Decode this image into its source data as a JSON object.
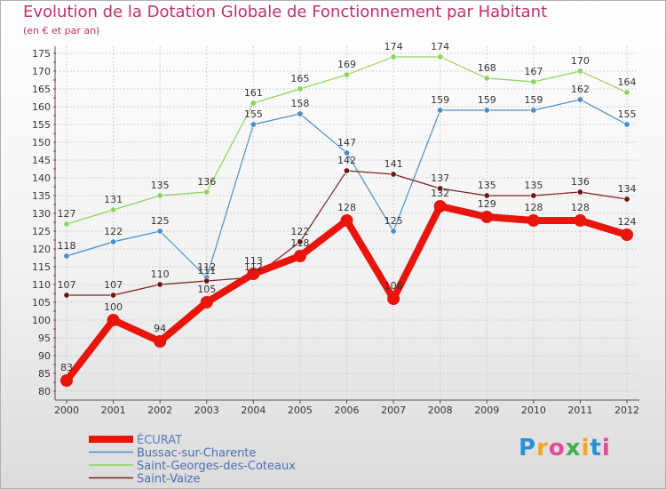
{
  "header": {
    "title": "Evolution de la Dotation Globale de Fonctionnement par Habitant",
    "subtitle": "(en € et par an)"
  },
  "logo": {
    "letters": [
      "P",
      "r",
      "o",
      "x",
      "i",
      "t",
      "i"
    ],
    "colors": [
      "#2e8fd6",
      "#f3a526",
      "#e04b9a",
      "#3cb04a",
      "#f3a526",
      "#2e8fd6",
      "#e04b9a"
    ]
  },
  "chart_data": {
    "type": "line",
    "categories": [
      "2000",
      "2001",
      "2002",
      "2003",
      "2004",
      "2005",
      "2006",
      "2007",
      "2008",
      "2009",
      "2010",
      "2011",
      "2012"
    ],
    "ylim": [
      80,
      175
    ],
    "yticks": [
      80,
      85,
      90,
      95,
      100,
      105,
      110,
      115,
      120,
      125,
      130,
      135,
      140,
      145,
      150,
      155,
      160,
      165,
      170,
      175
    ],
    "grid": true,
    "legend_position": "bottom-left",
    "series": [
      {
        "name": "ÉCURAT",
        "color": "#e8150c",
        "values": [
          83,
          100,
          94,
          105,
          113,
          118,
          128,
          106,
          132,
          129,
          128,
          128,
          124
        ]
      },
      {
        "name": "Bussac-sur-Charente",
        "color": "#4a8fc7",
        "values": [
          118,
          122,
          125,
          112,
          155,
          158,
          147,
          125,
          159,
          159,
          159,
          162,
          155
        ]
      },
      {
        "name": "Saint-Georges-des-Coteaux",
        "color": "#8ed35a",
        "values": [
          127,
          131,
          135,
          136,
          161,
          165,
          169,
          174,
          174,
          168,
          167,
          170,
          164
        ]
      },
      {
        "name": "Saint-Vaize",
        "color": "#7a2020",
        "values": [
          107,
          107,
          110,
          111,
          112,
          122,
          142,
          141,
          137,
          135,
          135,
          136,
          134
        ]
      }
    ]
  }
}
